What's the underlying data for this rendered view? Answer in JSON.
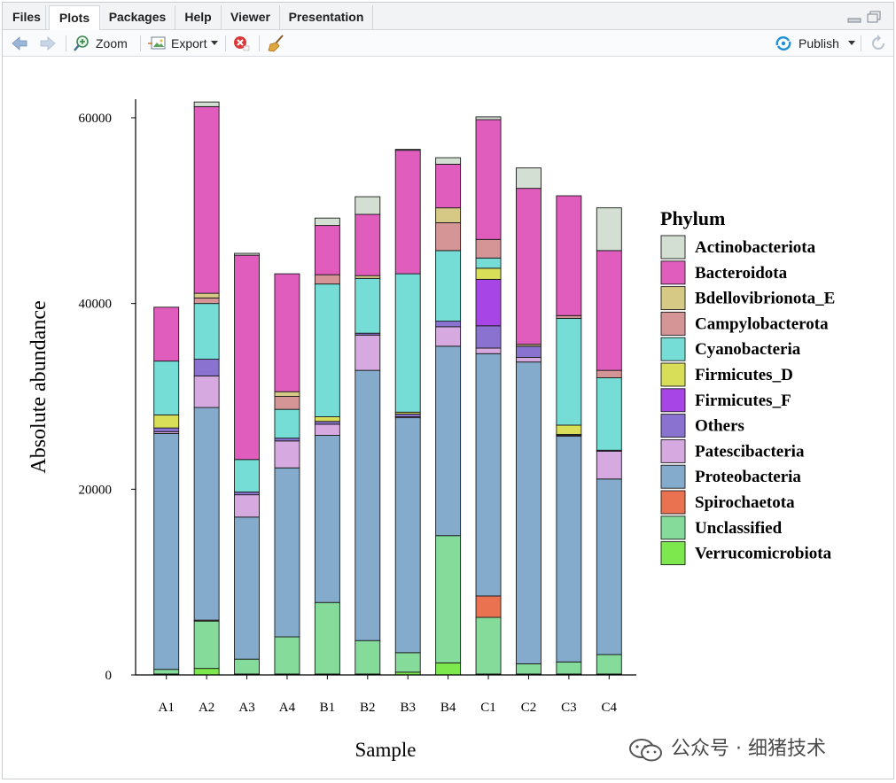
{
  "tabs": [
    "Files",
    "Plots",
    "Packages",
    "Help",
    "Viewer",
    "Presentation"
  ],
  "active_tab": "Plots",
  "toolbar": {
    "zoom_label": "Zoom",
    "export_label": "Export",
    "publish_label": "Publish"
  },
  "colors": {
    "Actinobacteriota": "#d3dfd2",
    "Bacteroidota": "#e05cbd",
    "Bdellovibrionota_E": "#d6c986",
    "Campylobacterota": "#d59596",
    "Cyanobacteria": "#75dcd6",
    "Firmicutes_D": "#d8de57",
    "Firmicutes_F": "#a745e6",
    "Others": "#8a73d0",
    "Patescibacteria": "#d6a9e0",
    "Proteobacteria": "#84abcb",
    "Spirochaetota": "#ea7251",
    "Unclassified": "#85dc9a",
    "Verrucomicrobiota": "#7de84e"
  },
  "chart_data": {
    "type": "bar",
    "stacked": true,
    "title": "",
    "xlabel": "Sample",
    "ylabel": "Absolute abundance",
    "ylim": [
      0,
      62000
    ],
    "yticks": [
      0,
      20000,
      40000,
      60000
    ],
    "legend_title": "Phylum",
    "legend_position": "right",
    "grid": false,
    "categories": [
      "A1",
      "A2",
      "A3",
      "A4",
      "B1",
      "B2",
      "B3",
      "B4",
      "C1",
      "C2",
      "C3",
      "C4"
    ],
    "series": [
      {
        "name": "Verrucomicrobiota",
        "values": [
          100,
          700,
          100,
          100,
          100,
          100,
          300,
          1300,
          100,
          100,
          100,
          100
        ]
      },
      {
        "name": "Unclassified",
        "values": [
          500,
          5100,
          1600,
          4000,
          7700,
          3600,
          2100,
          13700,
          6100,
          1100,
          1300,
          2100
        ]
      },
      {
        "name": "Spirochaetota",
        "values": [
          0,
          100,
          0,
          0,
          0,
          0,
          0,
          0,
          2300,
          0,
          0,
          0
        ]
      },
      {
        "name": "Proteobacteria",
        "values": [
          25400,
          22900,
          15300,
          18200,
          18000,
          29100,
          25300,
          20400,
          26100,
          32500,
          24300,
          18900
        ]
      },
      {
        "name": "Patescibacteria",
        "values": [
          200,
          3400,
          2400,
          2900,
          1200,
          3800,
          100,
          2100,
          600,
          500,
          100,
          3000
        ]
      },
      {
        "name": "Others",
        "values": [
          400,
          1800,
          300,
          300,
          300,
          200,
          300,
          600,
          2400,
          1200,
          100,
          100
        ]
      },
      {
        "name": "Firmicutes_F",
        "values": [
          0,
          0,
          0,
          0,
          0,
          0,
          0,
          0,
          5000,
          0,
          0,
          0
        ]
      },
      {
        "name": "Firmicutes_D",
        "values": [
          1400,
          0,
          0,
          0,
          500,
          0,
          200,
          0,
          1200,
          0,
          1000,
          0
        ]
      },
      {
        "name": "Cyanobacteria",
        "values": [
          5800,
          6000,
          3500,
          3100,
          14300,
          5900,
          14900,
          7600,
          1100,
          0,
          11500,
          7800
        ]
      },
      {
        "name": "Campylobacterota",
        "values": [
          0,
          600,
          0,
          1400,
          1000,
          0,
          0,
          3000,
          2000,
          0,
          300,
          800
        ]
      },
      {
        "name": "Bdellovibrionota_E",
        "values": [
          0,
          500,
          0,
          500,
          0,
          300,
          0,
          1600,
          0,
          200,
          0,
          0
        ]
      },
      {
        "name": "Bacteroidota",
        "values": [
          5800,
          20100,
          22000,
          12700,
          5300,
          6600,
          13300,
          4700,
          12900,
          16800,
          12900,
          12900
        ]
      },
      {
        "name": "Actinobacteriota",
        "values": [
          0,
          500,
          200,
          0,
          800,
          1900,
          100,
          700,
          300,
          2200,
          0,
          4600
        ]
      }
    ]
  },
  "watermark": "公众号 · 细猪技术"
}
